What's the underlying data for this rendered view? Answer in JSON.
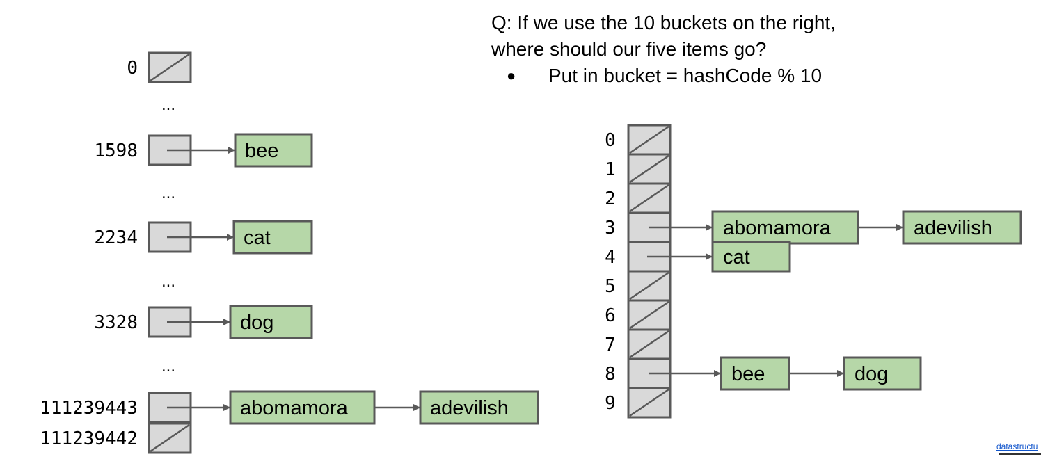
{
  "question": {
    "line1": "Q: If we use the 10 buckets on the right,",
    "line2": "where should our five items go?",
    "bullet": "Put in bucket = hashCode % 10"
  },
  "left_table": {
    "rows": [
      {
        "label": "0",
        "type": "null",
        "items": []
      },
      {
        "label": "...",
        "type": "ellipsis"
      },
      {
        "label": "1598",
        "type": "list",
        "items": [
          "bee"
        ]
      },
      {
        "label": "...",
        "type": "ellipsis"
      },
      {
        "label": "2234",
        "type": "list",
        "items": [
          "cat"
        ]
      },
      {
        "label": "...",
        "type": "ellipsis"
      },
      {
        "label": "3328",
        "type": "list",
        "items": [
          "dog"
        ]
      },
      {
        "label": "...",
        "type": "ellipsis"
      },
      {
        "label": "111239443",
        "type": "list",
        "items": [
          "abomamora",
          "adevilish"
        ]
      },
      {
        "label": "111239442",
        "type": "null",
        "items": []
      }
    ]
  },
  "right_table": {
    "buckets": [
      {
        "label": "0",
        "items": []
      },
      {
        "label": "1",
        "items": []
      },
      {
        "label": "2",
        "items": []
      },
      {
        "label": "3",
        "items": [
          "abomamora",
          "adevilish"
        ]
      },
      {
        "label": "4",
        "items": [
          "cat"
        ]
      },
      {
        "label": "5",
        "items": []
      },
      {
        "label": "6",
        "items": []
      },
      {
        "label": "7",
        "items": []
      },
      {
        "label": "8",
        "items": [
          "bee",
          "dog"
        ]
      },
      {
        "label": "9",
        "items": []
      }
    ]
  },
  "footer": {
    "link": "datastructu"
  },
  "colors": {
    "cell_fill": "#d9d9d9",
    "node_fill": "#b6d7a8",
    "stroke": "#595959"
  }
}
